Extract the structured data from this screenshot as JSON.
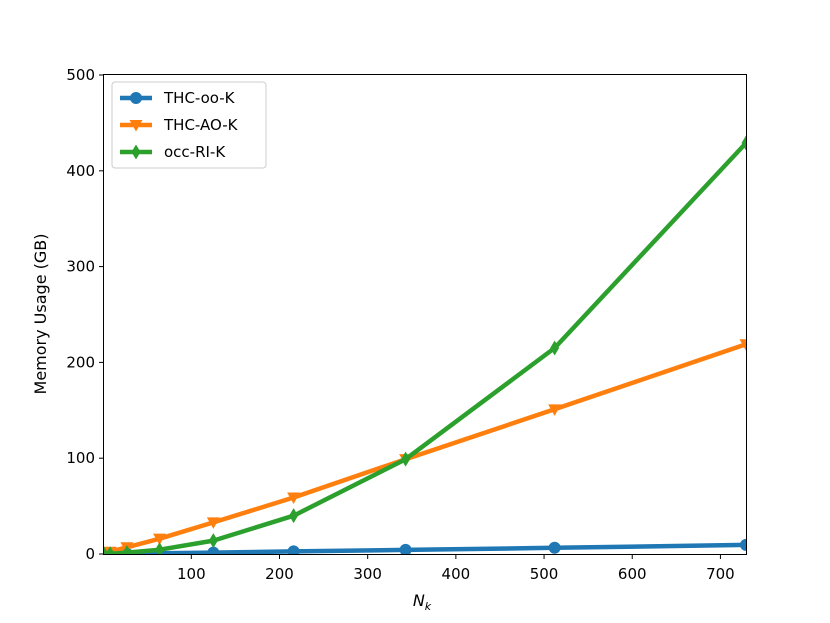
{
  "chart_data": {
    "type": "line",
    "xlabel_main": "N",
    "xlabel_sub": "k",
    "ylabel": "Memory Usage (GB)",
    "xlim": [
      1,
      729
    ],
    "ylim": [
      0,
      500
    ],
    "xticks": [
      100,
      200,
      300,
      400,
      500,
      600,
      700
    ],
    "yticks": [
      0,
      100,
      200,
      300,
      400,
      500
    ],
    "x": [
      1,
      8,
      27,
      64,
      125,
      216,
      343,
      512,
      729
    ],
    "legend_position": "upper-left",
    "grid": false,
    "series": [
      {
        "name": "THC-oo-K",
        "color": "#1f77b4",
        "marker": "circle",
        "values": [
          0.0,
          0.1,
          0.3,
          0.7,
          1.5,
          2.7,
          4.3,
          6.5,
          9.5
        ]
      },
      {
        "name": "THC-AO-K",
        "color": "#ff7f0e",
        "marker": "triangle-down",
        "values": [
          0.3,
          2.4,
          7.0,
          16.0,
          33.0,
          59.0,
          99.0,
          151.0,
          219.0
        ]
      },
      {
        "name": "occ-RI-K",
        "color": "#2ca02c",
        "marker": "thin-diamond",
        "values": [
          0.0,
          0.3,
          1.4,
          4.5,
          14.0,
          40.0,
          99.0,
          215.0,
          429.0
        ]
      }
    ]
  }
}
